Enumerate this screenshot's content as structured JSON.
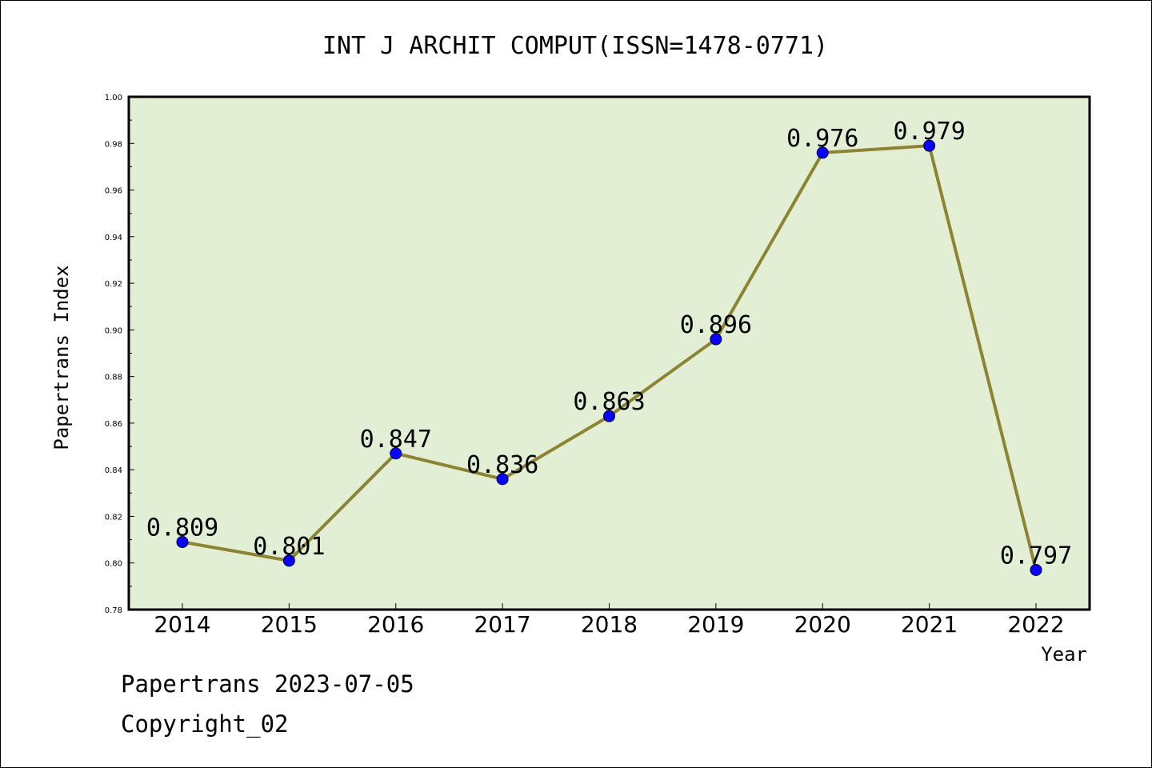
{
  "chart_data": {
    "type": "line",
    "title": "INT J ARCHIT COMPUT(ISSN=1478-0771)",
    "xlabel": "Year",
    "ylabel": "Papertrans Index",
    "categories": [
      "2014",
      "2015",
      "2016",
      "2017",
      "2018",
      "2019",
      "2020",
      "2021",
      "2022"
    ],
    "values": [
      0.809,
      0.801,
      0.847,
      0.836,
      0.863,
      0.896,
      0.976,
      0.979,
      0.797
    ],
    "data_labels": [
      "0.809",
      "0.801",
      "0.847",
      "0.836",
      "0.863",
      "0.896",
      "0.976",
      "0.979",
      "0.797"
    ],
    "ylim": [
      0.78,
      1.0
    ],
    "yticks": [
      "0.78",
      "0.80",
      "0.82",
      "0.84",
      "0.86",
      "0.88",
      "0.90",
      "0.92",
      "0.94",
      "0.96",
      "0.98",
      "1.00"
    ],
    "grid": false,
    "legend": "none",
    "colors": {
      "plot_background": "#e2efd5",
      "line": "#8c8433",
      "marker": "#0a00ff"
    }
  },
  "footer": {
    "line1": "Papertrans 2023-07-05",
    "line2": "Copyright_02"
  }
}
